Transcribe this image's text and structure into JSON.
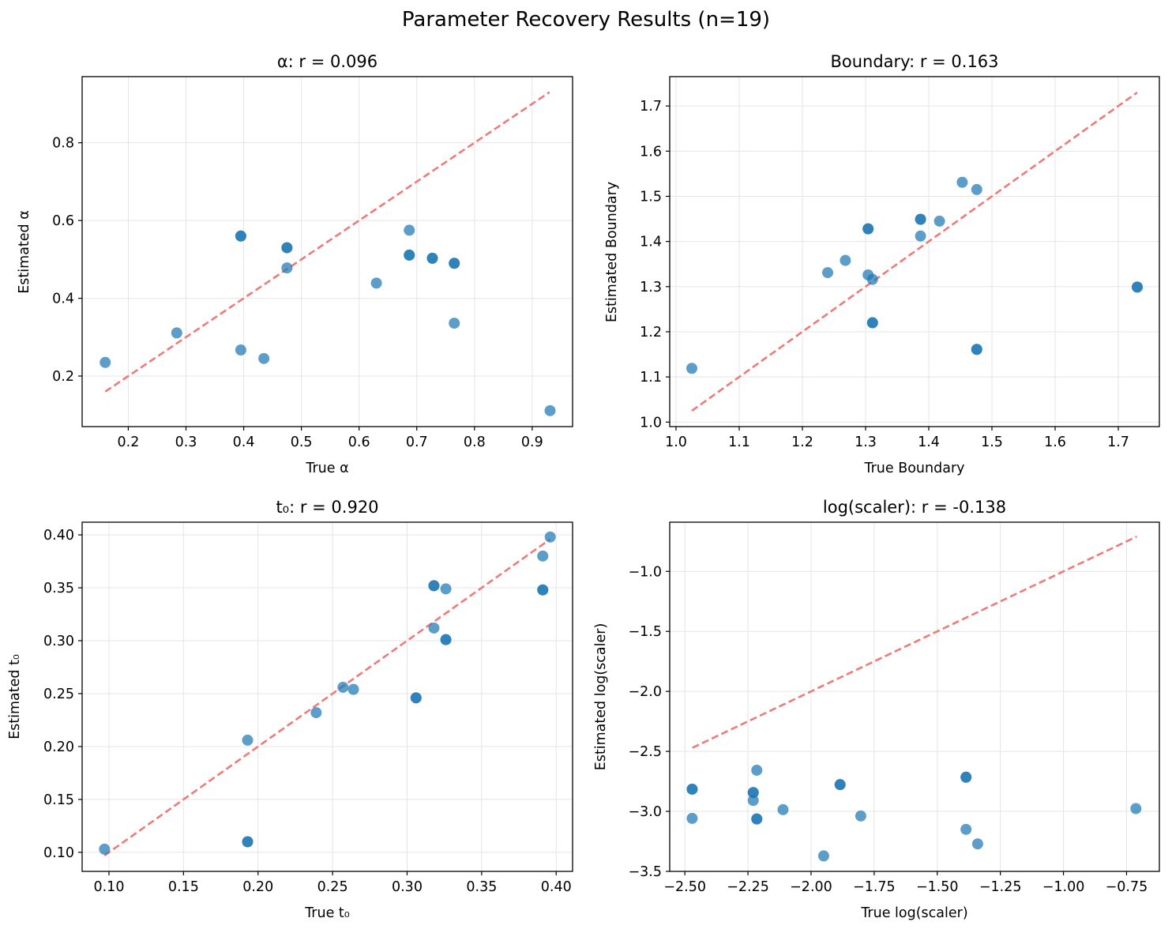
{
  "suptitle": "Parameter Recovery Results (n=19)",
  "colors": {
    "points": "#1f77b4",
    "identity": "#f07a78",
    "grid": "#e5e5e5",
    "axes": "#000000"
  },
  "chart_data": [
    {
      "type": "scatter",
      "title": "α: r = 0.096",
      "xlabel": "True α",
      "ylabel": "Estimated α",
      "xlim": [
        0.12,
        0.97
      ],
      "ylim": [
        0.07,
        0.97
      ],
      "xticks": [
        0.2,
        0.3,
        0.4,
        0.5,
        0.6,
        0.7,
        0.8,
        0.9
      ],
      "xtick_labels": [
        "0.2",
        "0.3",
        "0.4",
        "0.5",
        "0.6",
        "0.7",
        "0.8",
        "0.9"
      ],
      "yticks": [
        0.2,
        0.4,
        0.6,
        0.8
      ],
      "ytick_labels": [
        "0.2",
        "0.4",
        "0.6",
        "0.8"
      ],
      "identity_line": [
        0.16,
        0.93
      ],
      "grid": true,
      "points": [
        {
          "x": 0.16,
          "y": 0.235
        },
        {
          "x": 0.284,
          "y": 0.311
        },
        {
          "x": 0.395,
          "y": 0.267
        },
        {
          "x": 0.395,
          "y": 0.56
        },
        {
          "x": 0.395,
          "y": 0.56
        },
        {
          "x": 0.435,
          "y": 0.245
        },
        {
          "x": 0.475,
          "y": 0.478
        },
        {
          "x": 0.475,
          "y": 0.53
        },
        {
          "x": 0.475,
          "y": 0.53
        },
        {
          "x": 0.63,
          "y": 0.439
        },
        {
          "x": 0.687,
          "y": 0.575
        },
        {
          "x": 0.687,
          "y": 0.511
        },
        {
          "x": 0.687,
          "y": 0.511
        },
        {
          "x": 0.727,
          "y": 0.503
        },
        {
          "x": 0.727,
          "y": 0.503
        },
        {
          "x": 0.765,
          "y": 0.49
        },
        {
          "x": 0.765,
          "y": 0.49
        },
        {
          "x": 0.765,
          "y": 0.336
        },
        {
          "x": 0.931,
          "y": 0.111
        }
      ]
    },
    {
      "type": "scatter",
      "title": "Boundary: r = 0.163",
      "xlabel": "True Boundary",
      "ylabel": "Estimated Boundary",
      "xlim": [
        0.99,
        1.765
      ],
      "ylim": [
        0.99,
        1.765
      ],
      "xticks": [
        1.0,
        1.1,
        1.2,
        1.3,
        1.4,
        1.5,
        1.6,
        1.7
      ],
      "xtick_labels": [
        "1.0",
        "1.1",
        "1.2",
        "1.3",
        "1.4",
        "1.5",
        "1.6",
        "1.7"
      ],
      "yticks": [
        1.0,
        1.1,
        1.2,
        1.3,
        1.4,
        1.5,
        1.6,
        1.7
      ],
      "ytick_labels": [
        "1.0",
        "1.1",
        "1.2",
        "1.3",
        "1.4",
        "1.5",
        "1.6",
        "1.7"
      ],
      "identity_line": [
        1.025,
        1.73
      ],
      "grid": true,
      "points": [
        {
          "x": 1.025,
          "y": 1.119
        },
        {
          "x": 1.24,
          "y": 1.331
        },
        {
          "x": 1.268,
          "y": 1.358
        },
        {
          "x": 1.304,
          "y": 1.326
        },
        {
          "x": 1.304,
          "y": 1.428
        },
        {
          "x": 1.304,
          "y": 1.428
        },
        {
          "x": 1.311,
          "y": 1.316
        },
        {
          "x": 1.311,
          "y": 1.22
        },
        {
          "x": 1.311,
          "y": 1.22
        },
        {
          "x": 1.387,
          "y": 1.412
        },
        {
          "x": 1.387,
          "y": 1.449
        },
        {
          "x": 1.387,
          "y": 1.449
        },
        {
          "x": 1.417,
          "y": 1.445
        },
        {
          "x": 1.453,
          "y": 1.531
        },
        {
          "x": 1.476,
          "y": 1.515
        },
        {
          "x": 1.476,
          "y": 1.161
        },
        {
          "x": 1.476,
          "y": 1.161
        },
        {
          "x": 1.73,
          "y": 1.299
        },
        {
          "x": 1.73,
          "y": 1.299
        }
      ]
    },
    {
      "type": "scatter",
      "title": "t₀: r = 0.920",
      "xlabel": "True t₀",
      "ylabel": "Estimated t₀",
      "xlim": [
        0.082,
        0.411
      ],
      "ylim": [
        0.082,
        0.412
      ],
      "xticks": [
        0.1,
        0.15,
        0.2,
        0.25,
        0.3,
        0.35,
        0.4
      ],
      "xtick_labels": [
        "0.10",
        "0.15",
        "0.20",
        "0.25",
        "0.30",
        "0.35",
        "0.40"
      ],
      "yticks": [
        0.1,
        0.15,
        0.2,
        0.25,
        0.3,
        0.35,
        0.4
      ],
      "ytick_labels": [
        "0.10",
        "0.15",
        "0.20",
        "0.25",
        "0.30",
        "0.35",
        "0.40"
      ],
      "identity_line": [
        0.097,
        0.396
      ],
      "grid": true,
      "points": [
        {
          "x": 0.097,
          "y": 0.103
        },
        {
          "x": 0.193,
          "y": 0.206
        },
        {
          "x": 0.193,
          "y": 0.11
        },
        {
          "x": 0.193,
          "y": 0.11
        },
        {
          "x": 0.239,
          "y": 0.232
        },
        {
          "x": 0.257,
          "y": 0.256
        },
        {
          "x": 0.264,
          "y": 0.254
        },
        {
          "x": 0.306,
          "y": 0.246
        },
        {
          "x": 0.306,
          "y": 0.246
        },
        {
          "x": 0.318,
          "y": 0.312
        },
        {
          "x": 0.318,
          "y": 0.352
        },
        {
          "x": 0.318,
          "y": 0.352
        },
        {
          "x": 0.326,
          "y": 0.349
        },
        {
          "x": 0.326,
          "y": 0.301
        },
        {
          "x": 0.326,
          "y": 0.301
        },
        {
          "x": 0.391,
          "y": 0.38
        },
        {
          "x": 0.391,
          "y": 0.348
        },
        {
          "x": 0.391,
          "y": 0.348
        },
        {
          "x": 0.396,
          "y": 0.398
        }
      ]
    },
    {
      "type": "scatter",
      "title": "log(scaler): r = -0.138",
      "xlabel": "True log(scaler)",
      "ylabel": "Estimated log(scaler)",
      "xlim": [
        -2.56,
        -0.62
      ],
      "ylim": [
        -3.5,
        -0.59
      ],
      "xticks": [
        -2.5,
        -2.25,
        -2.0,
        -1.75,
        -1.5,
        -1.25,
        -1.0,
        -0.75
      ],
      "xtick_labels": [
        "−2.50",
        "−2.25",
        "−2.00",
        "−1.75",
        "−1.50",
        "−1.25",
        "−1.00",
        "−0.75"
      ],
      "yticks": [
        -3.5,
        -3.0,
        -2.5,
        -2.0,
        -1.5,
        -1.0
      ],
      "ytick_labels": [
        "−3.5",
        "−3.0",
        "−2.5",
        "−2.0",
        "−1.5",
        "−1.0"
      ],
      "identity_line": [
        -2.47,
        -0.71
      ],
      "grid": true,
      "points": [
        {
          "x": -2.471,
          "y": -3.058
        },
        {
          "x": -2.471,
          "y": -2.815
        },
        {
          "x": -2.471,
          "y": -2.815
        },
        {
          "x": -2.229,
          "y": -2.909
        },
        {
          "x": -2.229,
          "y": -2.843
        },
        {
          "x": -2.229,
          "y": -2.843
        },
        {
          "x": -2.215,
          "y": -2.657
        },
        {
          "x": -2.215,
          "y": -3.063
        },
        {
          "x": -2.215,
          "y": -3.063
        },
        {
          "x": -2.111,
          "y": -2.986
        },
        {
          "x": -1.95,
          "y": -3.371
        },
        {
          "x": -1.885,
          "y": -2.777
        },
        {
          "x": -1.885,
          "y": -2.777
        },
        {
          "x": -1.803,
          "y": -3.038
        },
        {
          "x": -1.386,
          "y": -2.715
        },
        {
          "x": -1.386,
          "y": -2.715
        },
        {
          "x": -1.386,
          "y": -3.15
        },
        {
          "x": -1.34,
          "y": -3.271
        },
        {
          "x": -0.713,
          "y": -2.977
        }
      ]
    }
  ]
}
